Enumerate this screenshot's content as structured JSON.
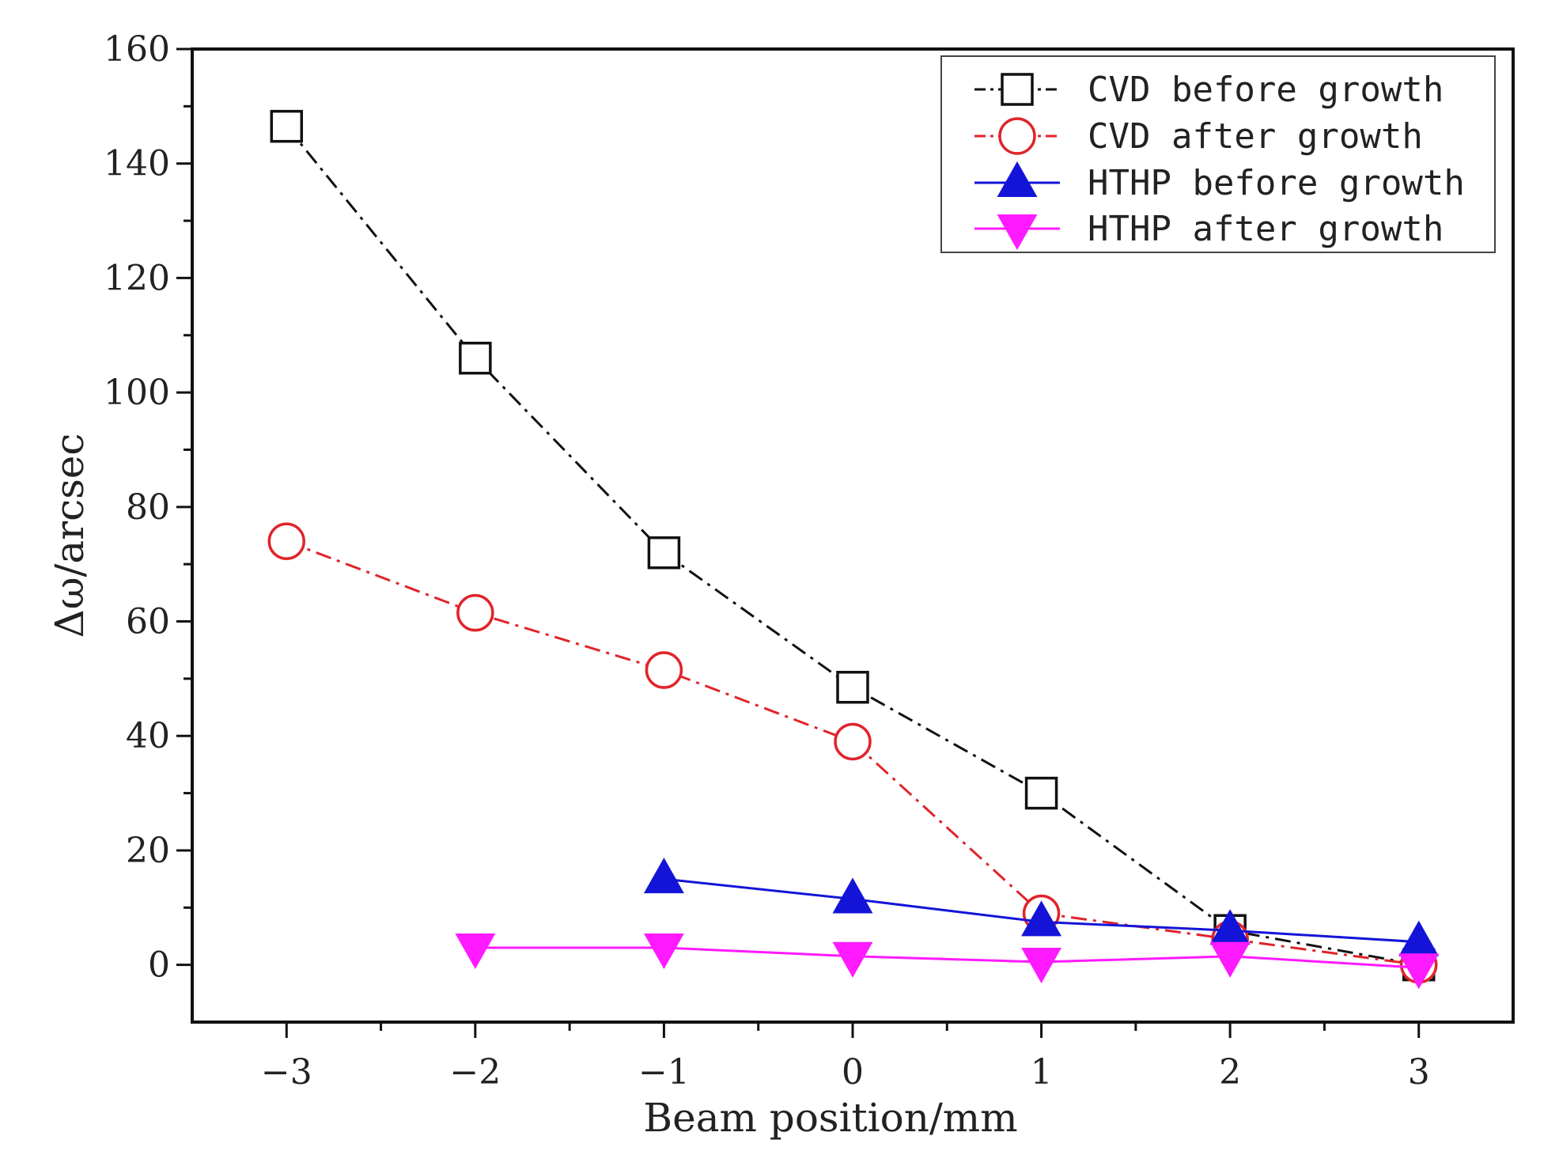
{
  "chart_data": {
    "type": "line",
    "title": "",
    "xlabel": "Beam position/mm",
    "ylabel": "Δω/arcsec",
    "xlim": [
      -3.5,
      3.5
    ],
    "ylim": [
      -10,
      160
    ],
    "x_ticks": [
      -3,
      -2,
      -1,
      0,
      1,
      2,
      3
    ],
    "x_tick_labels": [
      "−3",
      "−2",
      "−1",
      "0",
      "1",
      "2",
      "3"
    ],
    "y_ticks": [
      0,
      20,
      40,
      60,
      80,
      100,
      120,
      140,
      160
    ],
    "y_tick_labels": [
      "0",
      "20",
      "40",
      "60",
      "80",
      "100",
      "120",
      "140",
      "160"
    ],
    "grid": false,
    "legend_position": "top-right",
    "series": [
      {
        "name": "CVD before growth",
        "color": "#111111",
        "marker": "open-square",
        "line_style": "dash-dot",
        "x": [
          -3,
          -2,
          -1,
          0,
          1,
          2,
          3
        ],
        "values": [
          146.5,
          106,
          72,
          48.5,
          30,
          6,
          0
        ]
      },
      {
        "name": "CVD after growth",
        "color": "#e0242b",
        "marker": "open-circle",
        "line_style": "dash-dot",
        "x": [
          -3,
          -2,
          -1,
          0,
          1,
          2,
          3
        ],
        "values": [
          74,
          61.5,
          51.5,
          39,
          9,
          4.5,
          0
        ]
      },
      {
        "name": "HTHP before growth",
        "color": "#1414d8",
        "marker": "filled-triangle-up",
        "line_style": "solid",
        "x": [
          -1,
          0,
          1,
          2,
          3
        ],
        "values": [
          15,
          11.5,
          7.5,
          6,
          4
        ]
      },
      {
        "name": "HTHP after growth",
        "color": "#ff1aff",
        "marker": "filled-triangle-down",
        "line_style": "solid",
        "x": [
          -2,
          -1,
          0,
          1,
          2,
          3
        ],
        "values": [
          3,
          3,
          1.5,
          0.5,
          1.5,
          -0.5
        ]
      }
    ]
  }
}
